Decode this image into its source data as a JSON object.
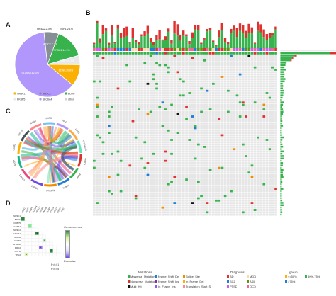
{
  "panels": {
    "A": "A",
    "B": "B",
    "C": "C",
    "D": "D"
  },
  "pie": {
    "slices": [
      {
        "label": "NR3C1,14.9%",
        "value": 14.9,
        "color": "#37b24d"
      },
      {
        "label": "FKBP5,4.7%",
        "value": 4.7,
        "color": "#e8e8e8"
      },
      {
        "label": "BDNF,10.8%",
        "value": 10.8,
        "color": "#fab005"
      },
      {
        "label": "SLC6A4,62.3%",
        "value": 62.3,
        "color": "#b197fc"
      },
      {
        "label": "NR3C2,7.3%",
        "value": 7.3,
        "color": "#868e96"
      }
    ],
    "top_labels": [
      "NR4A2,2.3%",
      "EGR1,2.1%"
    ],
    "legend": [
      "NR3C1",
      "NR3C2",
      "BDNF",
      "FKBP5",
      "SLC6A4",
      "other"
    ]
  },
  "oncoprint": {
    "legend_title_mut": "Mutations",
    "legend_mut": [
      "Missense_Mutation",
      "Frame_Shift_Del",
      "Splice_Site",
      "Nonsense_Mutation",
      "Frame_Shift_Ins",
      "In_Frame_Del",
      "Multi_Hit",
      "In_Frame_Ins",
      "Translation_Start_Site"
    ],
    "legend_title_diag": "Diagnosis",
    "legend_diag": [
      "BD",
      "MDD",
      "SCZ",
      "ASD",
      "PTSD",
      "OCD"
    ],
    "legend_title_group": "group",
    "legend_group": [
      "<=50%",
      "50%-75%",
      ">75%"
    ],
    "colors": {
      "missense": "#37b24d",
      "nonsense": "#e03131",
      "frameshift": "#1c7ed6",
      "splice": "#f08c00",
      "multi": "#111111",
      "grid": "#e6e6e6"
    }
  },
  "chord": {
    "gene_labels": [
      "NR3C1",
      "BDNF",
      "FKBP5",
      "SLC6A4",
      "NR3C2",
      "CRHR1",
      "MAOA",
      "COMT",
      "HTR2A",
      "DRD2",
      "OXTR",
      "TPH2",
      "GAD1",
      "CACNA1C"
    ]
  },
  "corr": {
    "legend_title": "Co-occurrence",
    "legend_bottom": "Exclusive",
    "pvals": [
      "P<0.01",
      "P<0.05"
    ],
    "genes": [
      "NR3C1",
      "BDNF",
      "FKBP5",
      "SLC6A4",
      "NR3C2",
      "CRHR1",
      "MAOA",
      "COMT",
      "HTR2A",
      "DRD2",
      "OXTR",
      "TPH2"
    ]
  }
}
